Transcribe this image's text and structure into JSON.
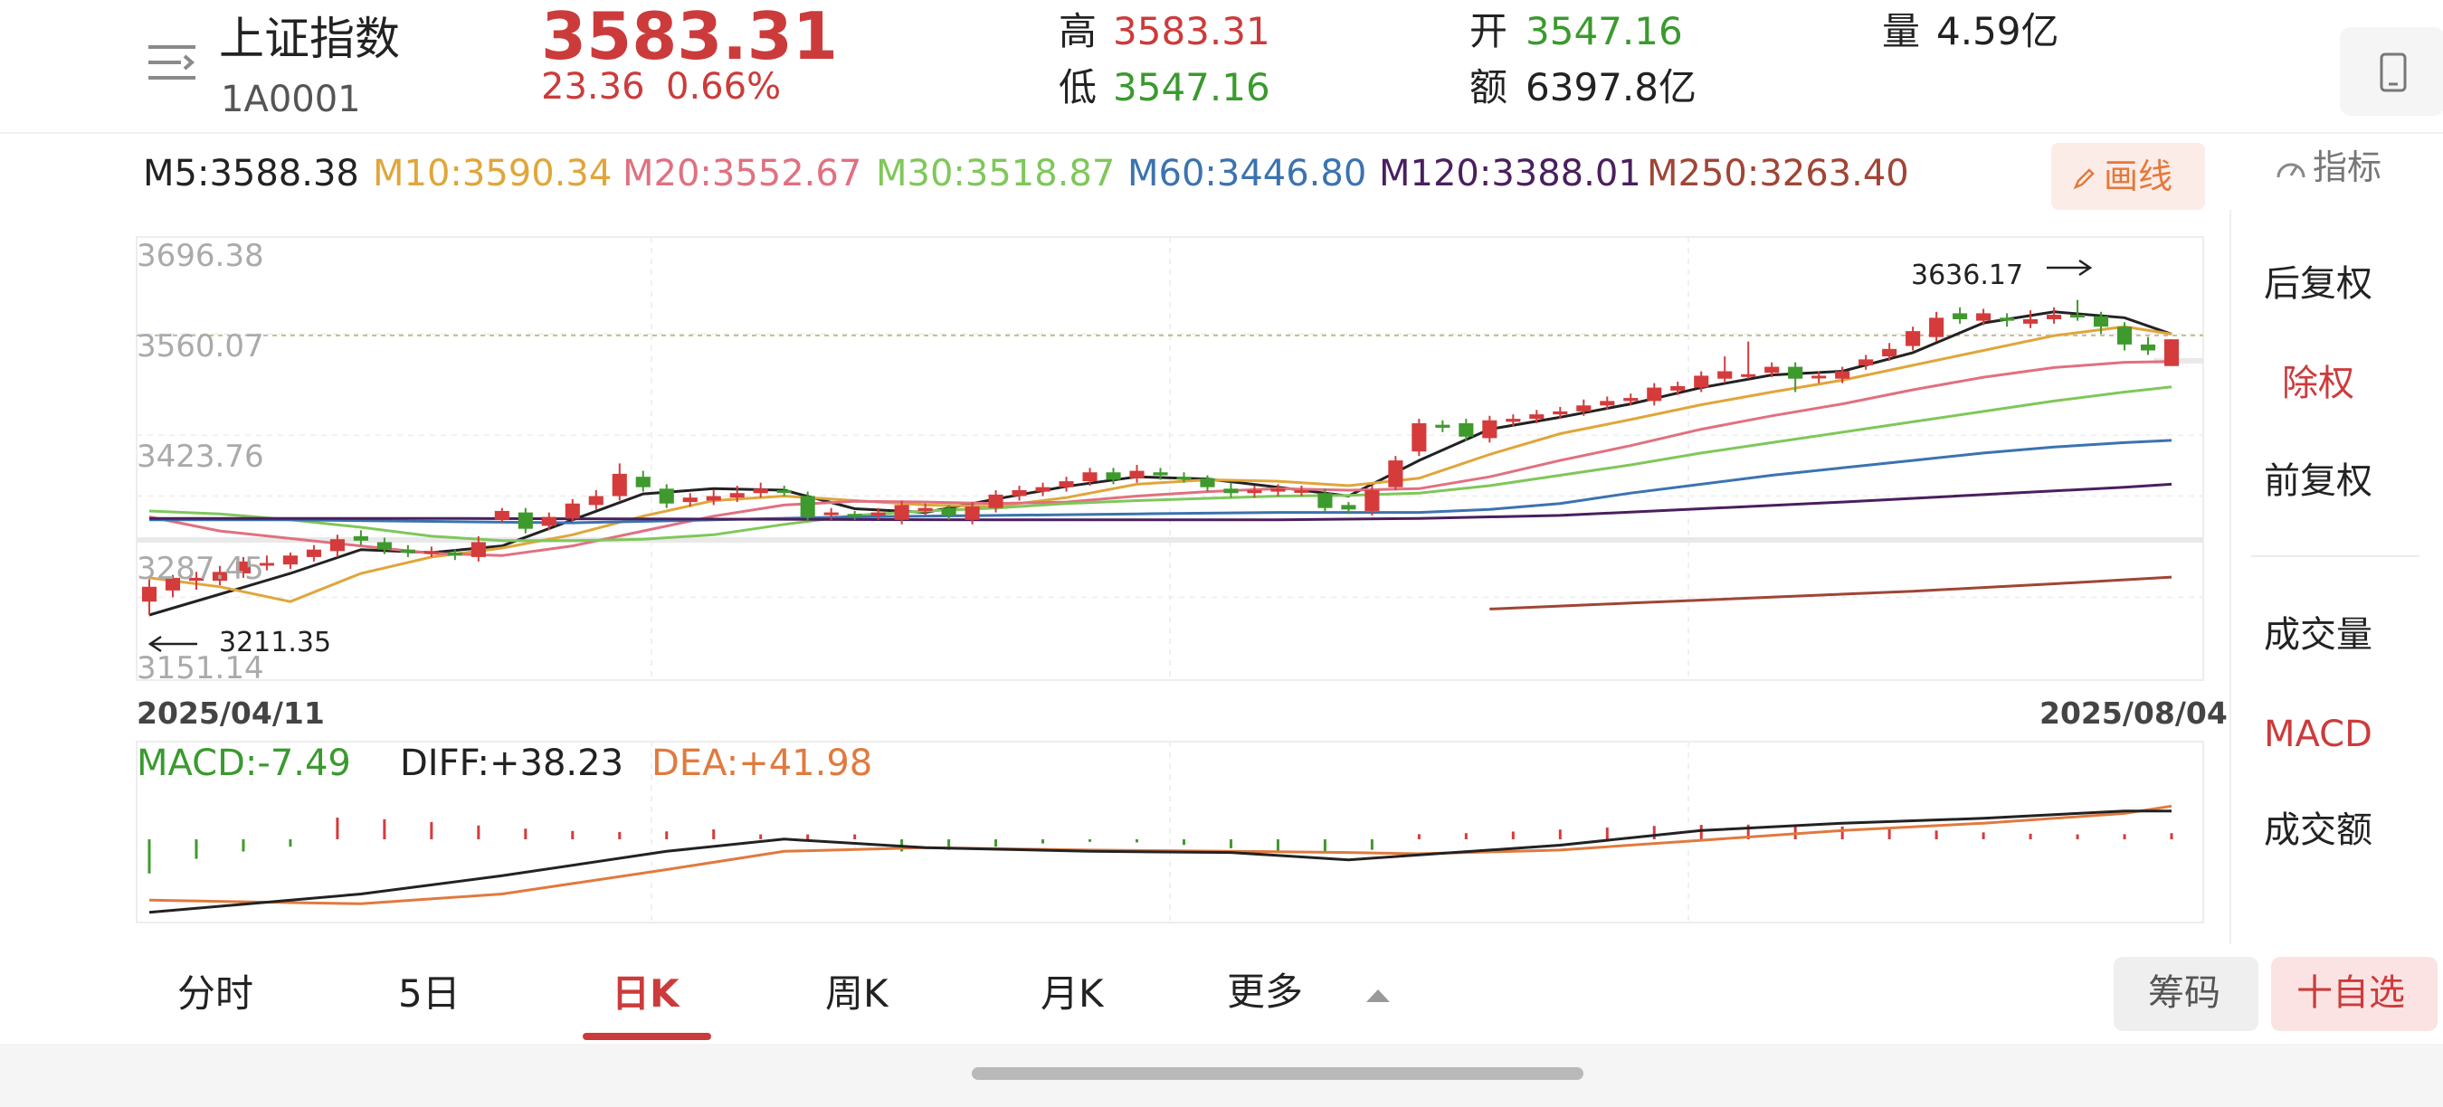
{
  "header": {
    "name": "上证指数",
    "code": "1A0001",
    "price": "3583.31",
    "change": "23.36",
    "change_pct": "0.66%",
    "high_label": "高",
    "high": "3583.31",
    "low_label": "低",
    "low": "3547.16",
    "open_label": "开",
    "open": "3547.16",
    "amount_label": "额",
    "amount": "6397.8亿",
    "volume_label": "量",
    "volume": "4.59亿"
  },
  "ma_legend": [
    {
      "text": "M5:3588.38",
      "color": "#222222"
    },
    {
      "text": "M10:3590.34",
      "color": "#e0a63a"
    },
    {
      "text": "M20:3552.67",
      "color": "#e07080"
    },
    {
      "text": "M30:3518.87",
      "color": "#7fc75a"
    },
    {
      "text": "M60:3446.80",
      "color": "#3b73b0"
    },
    {
      "text": "M120:3388.01",
      "color": "#4a1f5e"
    },
    {
      "text": "M250:3263.40",
      "color": "#a04535"
    }
  ],
  "draw_label": "画线",
  "indicator_label": "指标",
  "side_menu": {
    "items": [
      "后复权",
      "除权",
      "前复权"
    ],
    "items2": [
      "成交量",
      "MACD",
      "成交额"
    ]
  },
  "kline": {
    "y_ticks": [
      "3696.38",
      "3560.07",
      "3423.76",
      "3287.45",
      "3151.14"
    ],
    "start_date": "2025/04/11",
    "end_date": "2025/08/04",
    "max_label": "3636.17",
    "min_label": "3211.35"
  },
  "macd_legend": {
    "macd": "MACD:-7.49",
    "diff": "DIFF:+38.23",
    "dea": "DEA:+41.98"
  },
  "tabs": [
    "分时",
    "5日",
    "日K",
    "周K",
    "月K",
    "更多"
  ],
  "chips_label": "筹码",
  "fav_label": "十自选",
  "chart_data": {
    "type": "candlestick",
    "x_range": [
      "2025/04/11",
      "2025/08/04"
    ],
    "ylim": [
      3151.14,
      3696.38
    ],
    "y_ticks": [
      3696.38,
      3560.07,
      3423.76,
      3287.45,
      3151.14
    ],
    "last_close": 3583.31,
    "high_marker": 3636.17,
    "low_marker": 3211.35,
    "candles": [
      [
        3230,
        3250,
        3260,
        3212
      ],
      [
        3245,
        3262,
        3266,
        3236
      ],
      [
        3258,
        3262,
        3270,
        3246
      ],
      [
        3258,
        3270,
        3278,
        3252
      ],
      [
        3268,
        3284,
        3290,
        3262
      ],
      [
        3282,
        3282,
        3292,
        3272
      ],
      [
        3280,
        3292,
        3296,
        3274
      ],
      [
        3290,
        3300,
        3306,
        3284
      ],
      [
        3298,
        3314,
        3320,
        3290
      ],
      [
        3318,
        3312,
        3326,
        3306
      ],
      [
        3310,
        3300,
        3316,
        3294
      ],
      [
        3300,
        3296,
        3306,
        3290
      ],
      [
        3296,
        3298,
        3304,
        3290
      ],
      [
        3296,
        3292,
        3300,
        3286
      ],
      [
        3290,
        3310,
        3318,
        3284
      ],
      [
        3340,
        3352,
        3356,
        3336
      ],
      [
        3350,
        3328,
        3356,
        3322
      ],
      [
        3332,
        3344,
        3350,
        3326
      ],
      [
        3342,
        3362,
        3368,
        3338
      ],
      [
        3360,
        3372,
        3380,
        3354
      ],
      [
        3372,
        3402,
        3416,
        3366
      ],
      [
        3398,
        3384,
        3406,
        3378
      ],
      [
        3382,
        3362,
        3388,
        3356
      ],
      [
        3364,
        3370,
        3376,
        3358
      ],
      [
        3366,
        3372,
        3380,
        3360
      ],
      [
        3370,
        3376,
        3386,
        3364
      ],
      [
        3376,
        3382,
        3390,
        3370
      ],
      [
        3380,
        3378,
        3386,
        3372
      ],
      [
        3372,
        3344,
        3378,
        3338
      ],
      [
        3348,
        3350,
        3356,
        3340
      ],
      [
        3348,
        3346,
        3352,
        3340
      ],
      [
        3346,
        3350,
        3356,
        3340
      ],
      [
        3340,
        3360,
        3366,
        3334
      ],
      [
        3352,
        3356,
        3362,
        3346
      ],
      [
        3356,
        3346,
        3360,
        3340
      ],
      [
        3340,
        3358,
        3364,
        3334
      ],
      [
        3356,
        3374,
        3380,
        3350
      ],
      [
        3372,
        3380,
        3386,
        3366
      ],
      [
        3378,
        3384,
        3390,
        3372
      ],
      [
        3384,
        3392,
        3398,
        3378
      ],
      [
        3392,
        3404,
        3410,
        3386
      ],
      [
        3404,
        3394,
        3410,
        3388
      ],
      [
        3396,
        3406,
        3414,
        3390
      ],
      [
        3404,
        3400,
        3410,
        3394
      ],
      [
        3398,
        3396,
        3404,
        3390
      ],
      [
        3396,
        3384,
        3400,
        3378
      ],
      [
        3382,
        3376,
        3390,
        3370
      ],
      [
        3376,
        3380,
        3386,
        3370
      ],
      [
        3378,
        3382,
        3388,
        3372
      ],
      [
        3378,
        3380,
        3386,
        3372
      ],
      [
        3376,
        3356,
        3382,
        3350
      ],
      [
        3360,
        3354,
        3364,
        3348
      ],
      [
        3352,
        3380,
        3386,
        3346
      ],
      [
        3384,
        3420,
        3426,
        3380
      ],
      [
        3432,
        3470,
        3476,
        3426
      ],
      [
        3468,
        3464,
        3474,
        3458
      ],
      [
        3470,
        3452,
        3476,
        3446
      ],
      [
        3450,
        3474,
        3480,
        3444
      ],
      [
        3472,
        3476,
        3482,
        3466
      ],
      [
        3476,
        3482,
        3488,
        3470
      ],
      [
        3482,
        3486,
        3492,
        3476
      ],
      [
        3486,
        3494,
        3502,
        3480
      ],
      [
        3494,
        3500,
        3506,
        3488
      ],
      [
        3500,
        3504,
        3510,
        3494
      ],
      [
        3500,
        3518,
        3524,
        3494
      ],
      [
        3514,
        3520,
        3526,
        3508
      ],
      [
        3518,
        3534,
        3540,
        3512
      ],
      [
        3530,
        3540,
        3560,
        3524
      ],
      [
        3536,
        3536,
        3580,
        3530
      ],
      [
        3538,
        3546,
        3552,
        3532
      ],
      [
        3546,
        3530,
        3552,
        3512
      ],
      [
        3532,
        3534,
        3540,
        3524
      ],
      [
        3530,
        3540,
        3546,
        3524
      ],
      [
        3548,
        3556,
        3562,
        3542
      ],
      [
        3560,
        3570,
        3578,
        3554
      ],
      [
        3574,
        3594,
        3600,
        3568
      ],
      [
        3586,
        3612,
        3620,
        3580
      ],
      [
        3618,
        3610,
        3626,
        3604
      ],
      [
        3608,
        3618,
        3624,
        3602
      ],
      [
        3612,
        3608,
        3618,
        3600
      ],
      [
        3604,
        3610,
        3622,
        3598
      ],
      [
        3610,
        3616,
        3626,
        3604
      ],
      [
        3616,
        3614,
        3636,
        3608
      ],
      [
        3614,
        3600,
        3620,
        3590
      ],
      [
        3600,
        3576,
        3606,
        3568
      ],
      [
        3576,
        3568,
        3586,
        3562
      ],
      [
        3547,
        3583,
        3583,
        3547
      ]
    ],
    "ma_series": [
      {
        "name": "M5",
        "color": "#222222",
        "points": [
          [
            0,
            3212
          ],
          [
            3,
            3240
          ],
          [
            6,
            3268
          ],
          [
            9,
            3300
          ],
          [
            12,
            3296
          ],
          [
            15,
            3305
          ],
          [
            18,
            3340
          ],
          [
            21,
            3375
          ],
          [
            24,
            3382
          ],
          [
            27,
            3380
          ],
          [
            30,
            3355
          ],
          [
            33,
            3350
          ],
          [
            36,
            3368
          ],
          [
            39,
            3385
          ],
          [
            42,
            3398
          ],
          [
            45,
            3395
          ],
          [
            48,
            3384
          ],
          [
            51,
            3372
          ],
          [
            54,
            3420
          ],
          [
            57,
            3462
          ],
          [
            60,
            3478
          ],
          [
            63,
            3496
          ],
          [
            66,
            3518
          ],
          [
            69,
            3535
          ],
          [
            72,
            3540
          ],
          [
            75,
            3565
          ],
          [
            78,
            3605
          ],
          [
            81,
            3620
          ],
          [
            84,
            3612
          ],
          [
            86,
            3590
          ]
        ]
      },
      {
        "name": "M10",
        "color": "#e0a63a",
        "points": [
          [
            0,
            3262
          ],
          [
            3,
            3250
          ],
          [
            6,
            3230
          ],
          [
            9,
            3268
          ],
          [
            12,
            3290
          ],
          [
            15,
            3302
          ],
          [
            18,
            3320
          ],
          [
            21,
            3345
          ],
          [
            24,
            3366
          ],
          [
            27,
            3372
          ],
          [
            30,
            3366
          ],
          [
            33,
            3360
          ],
          [
            36,
            3358
          ],
          [
            39,
            3370
          ],
          [
            42,
            3388
          ],
          [
            45,
            3394
          ],
          [
            48,
            3392
          ],
          [
            51,
            3386
          ],
          [
            54,
            3396
          ],
          [
            57,
            3428
          ],
          [
            60,
            3456
          ],
          [
            63,
            3475
          ],
          [
            66,
            3495
          ],
          [
            69,
            3512
          ],
          [
            72,
            3528
          ],
          [
            75,
            3548
          ],
          [
            78,
            3568
          ],
          [
            81,
            3588
          ],
          [
            84,
            3600
          ],
          [
            86,
            3590
          ]
        ]
      },
      {
        "name": "M20",
        "color": "#e07080",
        "points": [
          [
            0,
            3344
          ],
          [
            3,
            3325
          ],
          [
            6,
            3315
          ],
          [
            9,
            3305
          ],
          [
            12,
            3295
          ],
          [
            15,
            3292
          ],
          [
            18,
            3305
          ],
          [
            21,
            3325
          ],
          [
            24,
            3345
          ],
          [
            27,
            3360
          ],
          [
            30,
            3365
          ],
          [
            33,
            3364
          ],
          [
            36,
            3362
          ],
          [
            39,
            3364
          ],
          [
            42,
            3372
          ],
          [
            45,
            3378
          ],
          [
            48,
            3382
          ],
          [
            51,
            3380
          ],
          [
            54,
            3382
          ],
          [
            57,
            3398
          ],
          [
            60,
            3420
          ],
          [
            63,
            3440
          ],
          [
            66,
            3462
          ],
          [
            69,
            3480
          ],
          [
            72,
            3496
          ],
          [
            75,
            3515
          ],
          [
            78,
            3532
          ],
          [
            81,
            3545
          ],
          [
            84,
            3552
          ],
          [
            86,
            3553
          ]
        ]
      },
      {
        "name": "M30",
        "color": "#7fc75a",
        "points": [
          [
            0,
            3352
          ],
          [
            3,
            3348
          ],
          [
            6,
            3340
          ],
          [
            9,
            3330
          ],
          [
            12,
            3318
          ],
          [
            15,
            3312
          ],
          [
            18,
            3312
          ],
          [
            21,
            3314
          ],
          [
            24,
            3320
          ],
          [
            27,
            3334
          ],
          [
            30,
            3346
          ],
          [
            33,
            3352
          ],
          [
            36,
            3356
          ],
          [
            39,
            3362
          ],
          [
            42,
            3366
          ],
          [
            45,
            3369
          ],
          [
            48,
            3372
          ],
          [
            51,
            3373
          ],
          [
            54,
            3376
          ],
          [
            57,
            3386
          ],
          [
            60,
            3400
          ],
          [
            63,
            3414
          ],
          [
            66,
            3430
          ],
          [
            69,
            3444
          ],
          [
            72,
            3458
          ],
          [
            75,
            3472
          ],
          [
            78,
            3486
          ],
          [
            81,
            3500
          ],
          [
            84,
            3512
          ],
          [
            86,
            3519
          ]
        ]
      },
      {
        "name": "M60",
        "color": "#3b73b0",
        "points": [
          [
            0,
            3340
          ],
          [
            6,
            3340
          ],
          [
            12,
            3338
          ],
          [
            18,
            3336
          ],
          [
            24,
            3340
          ],
          [
            30,
            3344
          ],
          [
            36,
            3346
          ],
          [
            42,
            3348
          ],
          [
            48,
            3350
          ],
          [
            54,
            3350
          ],
          [
            57,
            3354
          ],
          [
            60,
            3362
          ],
          [
            63,
            3376
          ],
          [
            66,
            3388
          ],
          [
            69,
            3400
          ],
          [
            72,
            3410
          ],
          [
            75,
            3420
          ],
          [
            78,
            3430
          ],
          [
            81,
            3438
          ],
          [
            84,
            3444
          ],
          [
            86,
            3447
          ]
        ]
      },
      {
        "name": "M120",
        "color": "#4a1f5e",
        "points": [
          [
            0,
            3342
          ],
          [
            12,
            3342
          ],
          [
            24,
            3341
          ],
          [
            36,
            3340
          ],
          [
            48,
            3340
          ],
          [
            54,
            3342
          ],
          [
            60,
            3346
          ],
          [
            66,
            3355
          ],
          [
            72,
            3364
          ],
          [
            78,
            3374
          ],
          [
            84,
            3384
          ],
          [
            86,
            3388
          ]
        ]
      },
      {
        "name": "M250",
        "color": "#a04535",
        "points": [
          [
            57,
            3220
          ],
          [
            63,
            3228
          ],
          [
            69,
            3236
          ],
          [
            75,
            3244
          ],
          [
            81,
            3254
          ],
          [
            86,
            3263
          ]
        ]
      }
    ],
    "macd": {
      "macd": -7.49,
      "diff": 38.23,
      "dea": 41.98,
      "diff_points": [
        [
          0,
          -45
        ],
        [
          9,
          -30
        ],
        [
          15,
          -15
        ],
        [
          22,
          5
        ],
        [
          27,
          15
        ],
        [
          33,
          8
        ],
        [
          40,
          5
        ],
        [
          46,
          4
        ],
        [
          51,
          -2
        ],
        [
          54,
          2
        ],
        [
          60,
          10
        ],
        [
          66,
          22
        ],
        [
          72,
          28
        ],
        [
          78,
          32
        ],
        [
          84,
          38
        ],
        [
          86,
          38
        ]
      ],
      "dea_points": [
        [
          0,
          -35
        ],
        [
          9,
          -38
        ],
        [
          15,
          -30
        ],
        [
          22,
          -10
        ],
        [
          27,
          5
        ],
        [
          33,
          8
        ],
        [
          40,
          6
        ],
        [
          46,
          5
        ],
        [
          51,
          4
        ],
        [
          54,
          3
        ],
        [
          60,
          6
        ],
        [
          66,
          14
        ],
        [
          72,
          22
        ],
        [
          78,
          28
        ],
        [
          84,
          36
        ],
        [
          86,
          42
        ]
      ]
    }
  }
}
